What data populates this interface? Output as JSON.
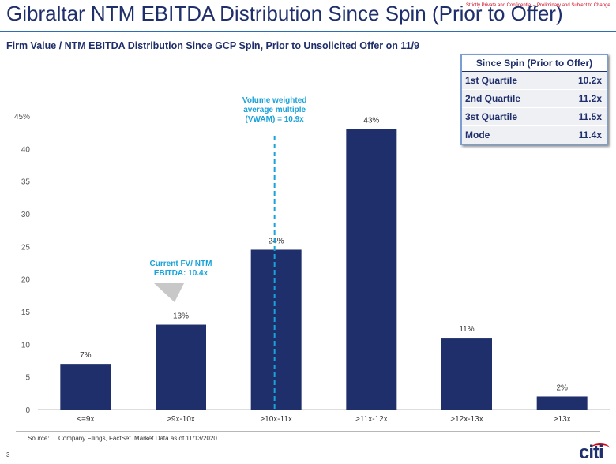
{
  "header": {
    "title": "Gibraltar NTM EBITDA Distribution Since Spin (Prior to Offer)",
    "confidential": "Strictly Private and Confidential – Preliminary and Subject to Change",
    "subtitle": "Firm Value / NTM EBITDA Distribution Since GCP Spin, Prior to Unsolicited Offer on 11/9"
  },
  "quartile_table": {
    "header": "Since Spin (Prior to Offer)",
    "rows": [
      {
        "label": "1st Quartile",
        "value": "10.2x"
      },
      {
        "label": "2nd Quartile",
        "value": "11.2x"
      },
      {
        "label": "3st Quartile",
        "value": "11.5x"
      },
      {
        "label": "Mode",
        "value": "11.4x"
      }
    ]
  },
  "chart_data": {
    "type": "bar",
    "title": "Firm Value / NTM EBITDA Distribution Since GCP Spin, Prior to Unsolicited Offer on 11/9",
    "categories": [
      "<=9x",
      ">9x-10x",
      ">10x-11x",
      ">11x-12x",
      ">12x-13x",
      ">13x"
    ],
    "values": [
      7,
      13,
      24.5,
      43,
      11,
      2
    ],
    "data_labels": [
      "7%",
      "13%",
      "24%",
      "43%",
      "11%",
      "2%"
    ],
    "ylim": [
      0,
      45
    ],
    "yticks": [
      0,
      5,
      10,
      15,
      20,
      25,
      30,
      35,
      40,
      45
    ],
    "ytick_labels": [
      "0",
      "5",
      "10",
      "15",
      "20",
      "25",
      "30",
      "35",
      "40",
      "45%"
    ],
    "xlabel": "",
    "ylabel": "",
    "bar_color": "#1f2f6b",
    "annotations": {
      "vwam": {
        "lines": [
          "Volume weighted",
          "average multiple",
          "(VWAM) = 10.9x"
        ],
        "category_index": 2,
        "offset": 0.4
      },
      "current": {
        "lines": [
          "Current FV/ NTM",
          "EBITDA: 10.4x"
        ],
        "category_index": 1
      }
    }
  },
  "colors": {
    "accent_cyan": "#1aa3d9",
    "navy": "#1f2f6b",
    "gray_marker": "#c8c8c8"
  },
  "footer": {
    "source_label": "Source:",
    "source_text": "Company Filings, FactSet. Market Data as of 11/13/2020",
    "page_number": "3",
    "logo": "citi"
  }
}
